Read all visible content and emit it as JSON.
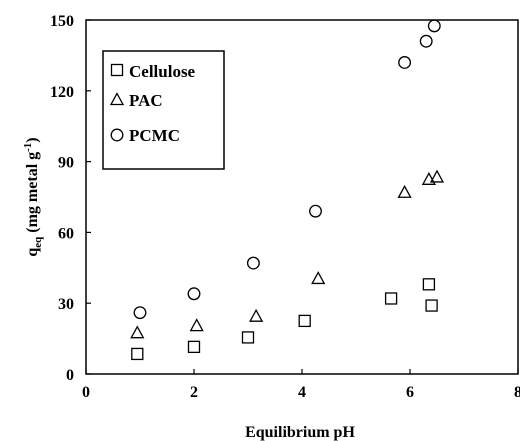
{
  "chart_data": {
    "type": "scatter",
    "xlabel": "Equilibrium pH",
    "ylabel": "q",
    "ylabel_sub": "eq",
    "ylabel_rest": " (mg metal g",
    "ylabel_sup": "-1",
    "ylabel_end": ")",
    "xlim": [
      0,
      8
    ],
    "ylim": [
      0,
      150
    ],
    "x_ticks": [
      "0",
      "2",
      "4",
      "6",
      "8"
    ],
    "y_ticks": [
      "0",
      "30",
      "60",
      "90",
      "120",
      "150"
    ],
    "grid": false,
    "legend_position": "top-left",
    "series": [
      {
        "name": "Cellulose",
        "marker": "square",
        "x": [
          0.95,
          2.0,
          3.0,
          4.05,
          5.65,
          6.35,
          6.4
        ],
        "y": [
          8.5,
          11.5,
          15.5,
          22.5,
          32,
          38,
          29
        ]
      },
      {
        "name": "PAC",
        "marker": "triangle",
        "x": [
          0.95,
          2.05,
          3.15,
          4.3,
          5.9,
          6.35,
          6.5
        ],
        "y": [
          17.5,
          20.5,
          24.5,
          40.5,
          77,
          82.5,
          83.5
        ]
      },
      {
        "name": "PCMC",
        "marker": "circle",
        "x": [
          1.0,
          2.0,
          3.1,
          4.25,
          5.9,
          6.3,
          6.45
        ],
        "y": [
          26,
          34,
          47,
          69,
          132,
          141,
          147.5
        ]
      }
    ]
  }
}
